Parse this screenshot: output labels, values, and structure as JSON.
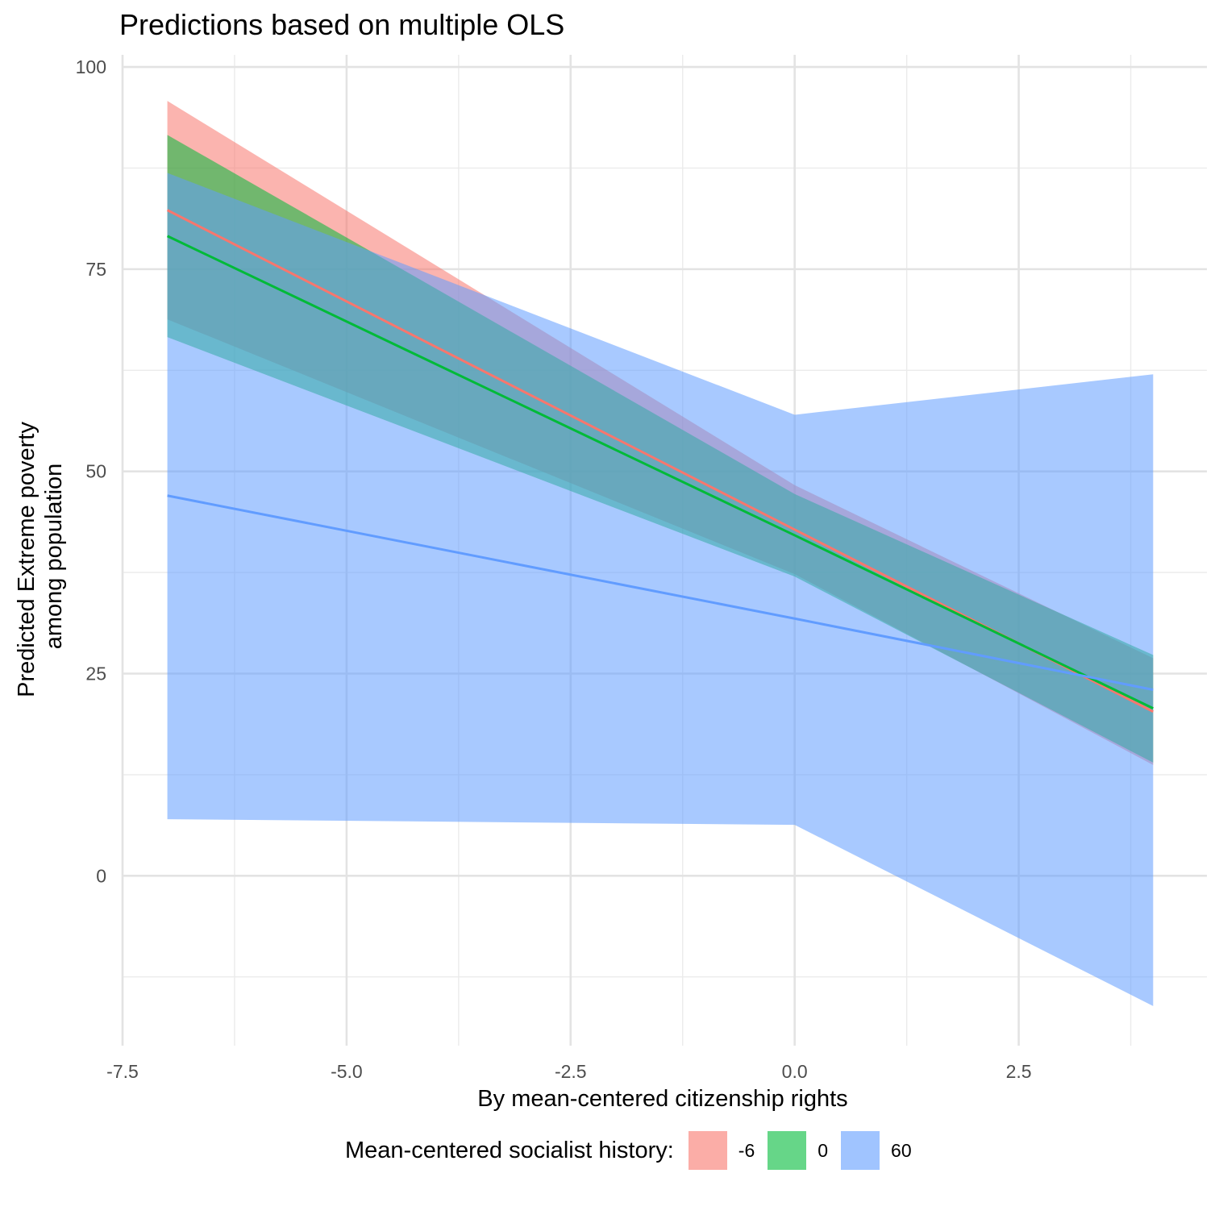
{
  "chart_data": {
    "type": "line",
    "title": "Predictions based on multiple OLS",
    "xlabel": "By mean-centered citizenship rights",
    "ylabel_lines": [
      "Predicted Extreme poverty",
      "among population"
    ],
    "xlim": [
      -7.5,
      4.6
    ],
    "ylim": [
      -21,
      101.5
    ],
    "x_ticks": [
      -7.5,
      -5.0,
      -2.5,
      0.0,
      2.5
    ],
    "x_tick_labels": [
      "-7.5",
      "-5.0",
      "-2.5",
      "0.0",
      "2.5"
    ],
    "y_ticks": [
      0,
      25,
      50,
      75,
      100
    ],
    "y_tick_labels": [
      "0",
      "25",
      "50",
      "75",
      "100"
    ],
    "grid": true,
    "legend": {
      "title": "Mean-centered socialist history:",
      "position": "bottom"
    },
    "series": [
      {
        "name": "-6",
        "color": "#F8766D",
        "x": [
          -7,
          0,
          4
        ],
        "y": [
          82.3,
          42.8,
          20.3
        ],
        "ymin": [
          68.8,
          37.3,
          13.7
        ],
        "ymax": [
          95.8,
          48.3,
          26.9
        ]
      },
      {
        "name": "0",
        "color": "#00BA38",
        "x": [
          -7,
          0,
          4
        ],
        "y": [
          79.1,
          42.1,
          20.7
        ],
        "ymin": [
          66.6,
          37.0,
          14.0
        ],
        "ymax": [
          91.6,
          47.2,
          27.3
        ]
      },
      {
        "name": "60",
        "color": "#619CFF",
        "x": [
          -7,
          0,
          4
        ],
        "y": [
          47.0,
          31.8,
          23.0
        ],
        "ymin": [
          7.0,
          6.3,
          -16.1
        ],
        "ymax": [
          86.9,
          57.0,
          62.0
        ]
      }
    ]
  }
}
